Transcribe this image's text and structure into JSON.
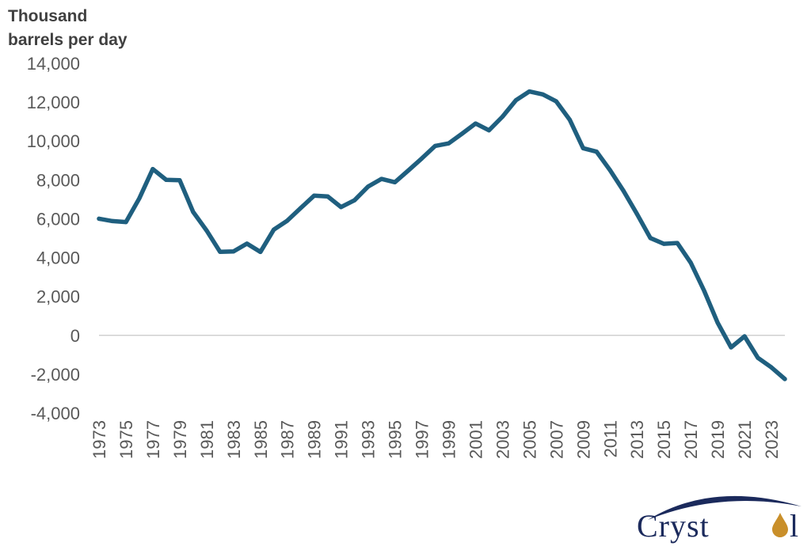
{
  "chart_data": {
    "type": "line",
    "ylabel_lines": [
      "Thousand",
      "barrels per day"
    ],
    "ylim": [
      -4000,
      14000
    ],
    "yticks": [
      14000,
      12000,
      10000,
      8000,
      6000,
      4000,
      2000,
      0,
      -2000,
      -4000
    ],
    "ytick_labels": [
      "14,000",
      "12,000",
      "10,000",
      "8,000",
      "6,000",
      "4,000",
      "2,000",
      "0",
      "-2,000",
      "-4,000"
    ],
    "xtick_labels": [
      "1973",
      "1975",
      "1977",
      "1979",
      "1981",
      "1983",
      "1985",
      "1987",
      "1989",
      "1991",
      "1993",
      "1995",
      "1997",
      "1999",
      "2001",
      "2003",
      "2005",
      "2007",
      "2009",
      "2011",
      "2013",
      "2015",
      "2017",
      "2019",
      "2021",
      "2023"
    ],
    "grid": false,
    "zero_line": true,
    "series": [
      {
        "color": "#1f5f7f",
        "x": [
          1973,
          1974,
          1975,
          1976,
          1977,
          1978,
          1979,
          1980,
          1981,
          1982,
          1983,
          1984,
          1985,
          1986,
          1987,
          1988,
          1989,
          1990,
          1991,
          1992,
          1993,
          1994,
          1995,
          1996,
          1997,
          1998,
          1999,
          2000,
          2001,
          2002,
          2003,
          2004,
          2005,
          2006,
          2007,
          2008,
          2009,
          2010,
          2011,
          2012,
          2013,
          2014,
          2015,
          2016,
          2017,
          2018,
          2019,
          2020,
          2021,
          2022,
          2023,
          2024
        ],
        "values": [
          6000,
          5880,
          5830,
          7050,
          8560,
          8000,
          7980,
          6350,
          5400,
          4300,
          4320,
          4720,
          4290,
          5440,
          5900,
          6550,
          7190,
          7150,
          6600,
          6950,
          7650,
          8050,
          7880,
          8480,
          9100,
          9750,
          9880,
          10380,
          10900,
          10550,
          11250,
          12100,
          12550,
          12400,
          12040,
          11100,
          9630,
          9450,
          8500,
          7440,
          6250,
          5010,
          4710,
          4750,
          3740,
          2290,
          650,
          -620,
          -50,
          -1160,
          -1650,
          -2250
        ]
      }
    ]
  },
  "logo": {
    "text": "Cryst",
    "text_tail": "l"
  }
}
